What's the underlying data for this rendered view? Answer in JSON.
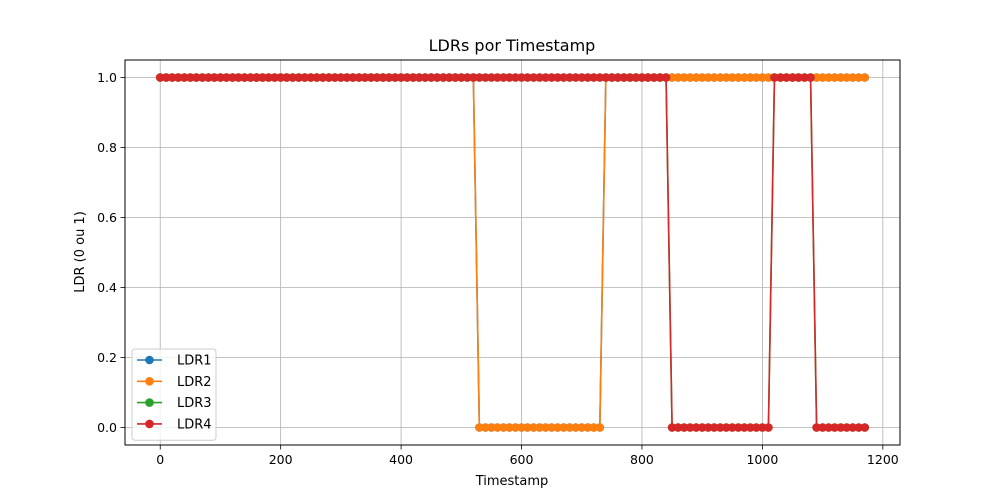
{
  "chart_data": {
    "type": "line",
    "title": "LDRs por Timestamp",
    "xlabel": "Timestamp",
    "ylabel": "LDR (0 ou 1)",
    "xlim": [
      -58.5,
      1228.5
    ],
    "ylim": [
      -0.05,
      1.05
    ],
    "xticks": [
      0,
      200,
      400,
      600,
      800,
      1000,
      1200
    ],
    "yticks": [
      0.0,
      0.2,
      0.4,
      0.6,
      0.8,
      1.0
    ],
    "xtick_labels": [
      "0",
      "200",
      "400",
      "600",
      "800",
      "1000",
      "1200"
    ],
    "ytick_labels": [
      "0.0",
      "0.2",
      "0.4",
      "0.6",
      "0.8",
      "1.0"
    ],
    "grid": true,
    "legend_position": "lower-left",
    "sample_step": 10,
    "x_max": 1170,
    "series": [
      {
        "name": "LDR1",
        "color": "#1f77b4",
        "marker": "circle",
        "low_segments": [
          [
            530,
            730
          ]
        ]
      },
      {
        "name": "LDR2",
        "color": "#ff7f0e",
        "marker": "circle",
        "low_segments": [
          [
            530,
            730
          ]
        ]
      },
      {
        "name": "LDR3",
        "color": "#2ca02c",
        "marker": "circle",
        "low_segments": [
          [
            850,
            1010
          ],
          [
            1090,
            1170
          ]
        ]
      },
      {
        "name": "LDR4",
        "color": "#d62728",
        "marker": "circle",
        "low_segments": [
          [
            850,
            1010
          ],
          [
            1090,
            1170
          ]
        ]
      }
    ]
  }
}
